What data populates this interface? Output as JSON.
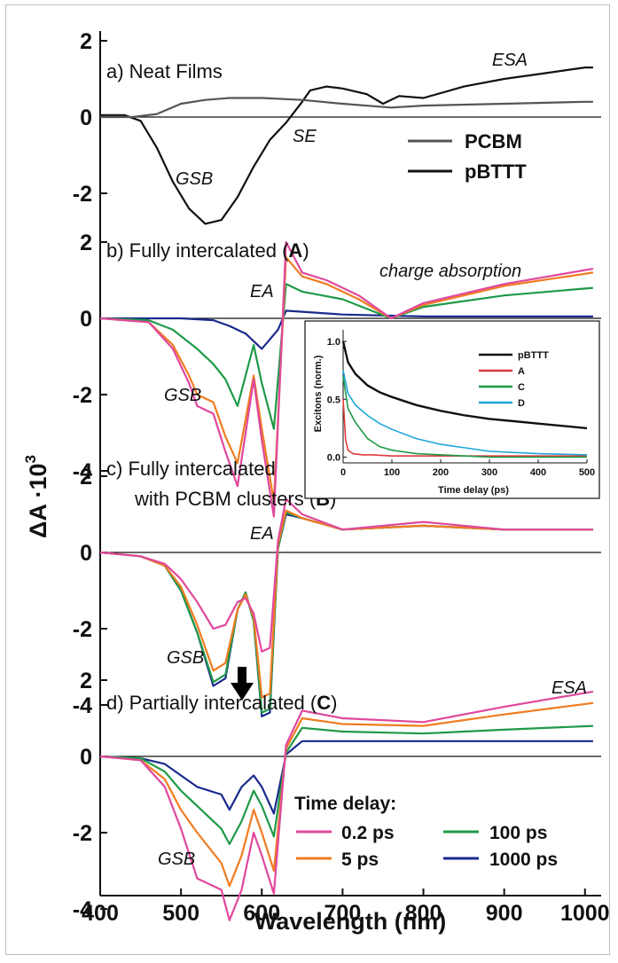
{
  "chart_data": {
    "type": "line",
    "xlabel": "Wavelength (nm)",
    "ylabel": "ΔA ·10",
    "ylabel_exp": "3",
    "xlim": [
      400,
      1020
    ],
    "xticks": [
      400,
      500,
      600,
      700,
      800,
      900,
      1000
    ],
    "colors": {
      "PCBM": "#555555",
      "pBTTT": "#111111",
      "0.2 ps": "#e0489c",
      "5 ps": "#f07c20",
      "100 ps": "#1f9a48",
      "1000 ps": "#1a2a8c"
    },
    "panels": [
      {
        "id": "a",
        "title": "a) Neat Films",
        "yticks": [
          2,
          0,
          -2
        ],
        "annotations": [
          "ESA",
          "SE",
          "GSB"
        ],
        "legend": [
          "PCBM",
          "pBTTT"
        ],
        "series": [
          {
            "name": "PCBM",
            "x": [
              400,
              440,
              470,
              500,
              530,
              560,
              600,
              650,
              700,
              760,
              800,
              900,
              1000,
              1010
            ],
            "y": [
              0,
              0,
              0.08,
              0.35,
              0.45,
              0.5,
              0.5,
              0.45,
              0.35,
              0.25,
              0.3,
              0.35,
              0.4,
              0.4
            ]
          },
          {
            "name": "pBTTT",
            "x": [
              400,
              430,
              450,
              470,
              490,
              510,
              530,
              550,
              560,
              570,
              590,
              610,
              630,
              650,
              660,
              680,
              700,
              730,
              750,
              770,
              800,
              850,
              900,
              950,
              1000,
              1010
            ],
            "y": [
              0.05,
              0.05,
              -0.1,
              -0.8,
              -1.7,
              -2.4,
              -2.8,
              -2.7,
              -2.4,
              -2.1,
              -1.3,
              -0.6,
              -0.15,
              0.4,
              0.7,
              0.8,
              0.75,
              0.6,
              0.35,
              0.55,
              0.5,
              0.8,
              1.0,
              1.15,
              1.3,
              1.3
            ]
          }
        ]
      },
      {
        "id": "b",
        "title_pre": "b) Fully intercalated (",
        "title_bold": "A",
        "title_post": ")",
        "yticks": [
          2,
          0,
          -2,
          -4
        ],
        "annotations": [
          "EA",
          "charge absorption",
          "GSB"
        ],
        "series": [
          {
            "name": "0.2 ps",
            "x": [
              400,
              460,
              490,
              510,
              520,
              540,
              555,
              570,
              590,
              600,
              615,
              630,
              650,
              680,
              720,
              760,
              800,
              900,
              1010
            ],
            "y": [
              0,
              -0.1,
              -0.8,
              -1.7,
              -2.3,
              -2.5,
              -3.5,
              -4.4,
              -1.6,
              -3.2,
              -5.2,
              2.0,
              1.2,
              1.0,
              0.6,
              0,
              0.4,
              0.9,
              1.3
            ]
          },
          {
            "name": "5 ps",
            "x": [
              400,
              460,
              490,
              510,
              520,
              540,
              555,
              570,
              590,
              600,
              615,
              630,
              650,
              680,
              720,
              760,
              800,
              900,
              1010
            ],
            "y": [
              0,
              -0.1,
              -0.7,
              -1.5,
              -2.0,
              -2.2,
              -3.1,
              -3.8,
              -1.5,
              -2.9,
              -4.8,
              1.6,
              1.1,
              0.9,
              0.5,
              0,
              0.35,
              0.85,
              1.2
            ]
          },
          {
            "name": "100 ps",
            "x": [
              400,
              460,
              490,
              520,
              540,
              555,
              570,
              590,
              600,
              615,
              630,
              650,
              700,
              760,
              800,
              900,
              1010
            ],
            "y": [
              0,
              -0.05,
              -0.3,
              -0.8,
              -1.2,
              -1.6,
              -2.3,
              -0.7,
              -1.7,
              -2.9,
              0.9,
              0.7,
              0.5,
              0,
              0.3,
              0.6,
              0.8
            ]
          },
          {
            "name": "1000 ps",
            "x": [
              400,
              500,
              540,
              560,
              580,
              600,
              620,
              630,
              700,
              800,
              900,
              1010
            ],
            "y": [
              0,
              0,
              -0.05,
              -0.2,
              -0.4,
              -0.8,
              -0.3,
              0.2,
              0.1,
              0.05,
              0.05,
              0.05
            ]
          }
        ],
        "inset": {
          "xlabel": "Time delay (ps)",
          "ylabel": "Excitons (norm.)",
          "xlim": [
            0,
            500
          ],
          "ylim": [
            -0.05,
            1.1
          ],
          "xticks": [
            0,
            100,
            200,
            300,
            400,
            500
          ],
          "yticks": [
            0.0,
            0.5,
            1.0
          ],
          "series": [
            {
              "name": "pBTTT",
              "color": "#111111",
              "x": [
                0,
                10,
                25,
                50,
                75,
                100,
                150,
                200,
                250,
                300,
                350,
                400,
                450,
                500
              ],
              "y": [
                1.0,
                0.82,
                0.72,
                0.62,
                0.56,
                0.52,
                0.45,
                0.4,
                0.36,
                0.33,
                0.31,
                0.29,
                0.27,
                0.25
              ]
            },
            {
              "name": "A",
              "color": "#e03a3a",
              "x": [
                0,
                5,
                10,
                20,
                40,
                60,
                100,
                200,
                300,
                400,
                500
              ],
              "y": [
                0.5,
                0.15,
                0.06,
                0.03,
                0.02,
                0.02,
                0.01,
                0.01,
                0.01,
                0.01,
                0.01
              ]
            },
            {
              "name": "C",
              "color": "#1f9a48",
              "x": [
                0,
                10,
                25,
                50,
                75,
                100,
                150,
                200,
                250,
                300,
                400,
                500
              ],
              "y": [
                0.7,
                0.42,
                0.3,
                0.16,
                0.09,
                0.06,
                0.03,
                0.02,
                0.01,
                0.0,
                0.0,
                0.0
              ]
            },
            {
              "name": "D",
              "color": "#1ca6d9",
              "x": [
                0,
                10,
                25,
                50,
                75,
                100,
                150,
                200,
                250,
                300,
                400,
                500
              ],
              "y": [
                0.75,
                0.55,
                0.45,
                0.36,
                0.29,
                0.24,
                0.16,
                0.11,
                0.08,
                0.05,
                0.03,
                0.02
              ]
            }
          ]
        }
      },
      {
        "id": "c",
        "title_line1": "c) Fully intercalated",
        "title_pre": "with PCBM clusters (",
        "title_bold": "B",
        "title_post": ")",
        "yticks": [
          2,
          0,
          -2,
          -4
        ],
        "annotations": [
          "EA",
          "GSB"
        ],
        "series": [
          {
            "name": "0.2 ps",
            "x": [
              400,
              450,
              480,
              500,
              520,
              540,
              555,
              570,
              580,
              590,
              600,
              610,
              620,
              630,
              650,
              700,
              800,
              900,
              1010
            ],
            "y": [
              0,
              -0.1,
              -0.3,
              -0.7,
              -1.3,
              -2.0,
              -1.9,
              -1.3,
              -1.2,
              -1.6,
              -2.6,
              -2.5,
              0.3,
              1.4,
              1.0,
              0.6,
              0.8,
              0.6,
              0.6
            ]
          },
          {
            "name": "5 ps",
            "x": [
              400,
              450,
              480,
              500,
              520,
              540,
              555,
              570,
              580,
              590,
              600,
              610,
              620,
              630,
              650,
              700,
              800,
              900,
              1010
            ],
            "y": [
              0,
              -0.1,
              -0.35,
              -0.9,
              -1.9,
              -3.1,
              -2.9,
              -1.5,
              -1.1,
              -1.7,
              -3.8,
              -3.7,
              0.2,
              1.1,
              0.9,
              0.6,
              0.7,
              0.6,
              0.6
            ]
          },
          {
            "name": "100 ps",
            "x": [
              400,
              450,
              480,
              500,
              520,
              540,
              555,
              570,
              580,
              590,
              600,
              610,
              620,
              630,
              650,
              700,
              800,
              900,
              1010
            ],
            "y": [
              0,
              -0.1,
              -0.35,
              -1.0,
              -2.1,
              -3.4,
              -3.2,
              -1.5,
              -1.05,
              -1.8,
              -4.2,
              -4.1,
              0.1,
              1.05,
              0.9,
              0.6,
              0.7,
              0.6,
              0.6
            ]
          },
          {
            "name": "1000 ps",
            "x": [
              400,
              450,
              480,
              500,
              520,
              540,
              555,
              570,
              580,
              590,
              600,
              610,
              620,
              630,
              650,
              700,
              800,
              900,
              1010
            ],
            "y": [
              0,
              -0.1,
              -0.35,
              -1.0,
              -2.1,
              -3.5,
              -3.3,
              -1.5,
              -1.05,
              -1.8,
              -4.3,
              -4.2,
              0.1,
              1.0,
              0.9,
              0.6,
              0.7,
              0.6,
              0.6
            ]
          }
        ]
      },
      {
        "id": "d",
        "title_pre": "d) Partially intercalated (",
        "title_bold": "C",
        "title_post": ")",
        "yticks": [
          2,
          0,
          -2,
          -4
        ],
        "annotations": [
          "ESA",
          "GSB"
        ],
        "legend_title": "Time delay:",
        "series": [
          {
            "name": "0.2 ps",
            "x": [
              400,
              450,
              480,
              500,
              520,
              550,
              560,
              575,
              590,
              600,
              615,
              630,
              650,
              700,
              800,
              900,
              1010
            ],
            "y": [
              0,
              -0.1,
              -0.8,
              -1.9,
              -3.2,
              -3.5,
              -4.3,
              -3.5,
              -2.0,
              -2.6,
              -3.6,
              0.3,
              1.2,
              1.0,
              0.9,
              1.3,
              1.7
            ]
          },
          {
            "name": "5 ps",
            "x": [
              400,
              450,
              480,
              500,
              520,
              550,
              560,
              575,
              590,
              600,
              615,
              630,
              650,
              700,
              800,
              900,
              1010
            ],
            "y": [
              0,
              -0.1,
              -0.6,
              -1.4,
              -2.0,
              -2.8,
              -3.4,
              -2.6,
              -1.4,
              -2.0,
              -3.0,
              0.2,
              1.0,
              0.85,
              0.8,
              1.1,
              1.4
            ]
          },
          {
            "name": "100 ps",
            "x": [
              400,
              450,
              480,
              500,
              520,
              550,
              560,
              575,
              590,
              600,
              615,
              630,
              650,
              700,
              800,
              900,
              1010
            ],
            "y": [
              0,
              -0.05,
              -0.4,
              -0.9,
              -1.3,
              -1.9,
              -2.3,
              -1.7,
              -0.9,
              -1.3,
              -2.1,
              0.1,
              0.75,
              0.65,
              0.6,
              0.7,
              0.8
            ]
          },
          {
            "name": "1000 ps",
            "x": [
              400,
              450,
              480,
              500,
              520,
              550,
              560,
              575,
              590,
              600,
              615,
              630,
              650,
              700,
              800,
              900,
              1010
            ],
            "y": [
              0,
              -0.05,
              -0.2,
              -0.5,
              -0.8,
              -1.0,
              -1.4,
              -0.8,
              -0.5,
              -0.8,
              -1.5,
              0.05,
              0.4,
              0.4,
              0.4,
              0.4,
              0.4
            ]
          }
        ]
      }
    ]
  }
}
